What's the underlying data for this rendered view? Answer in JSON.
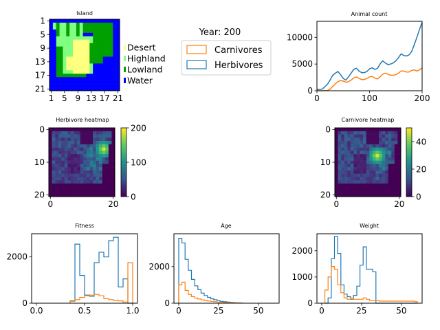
{
  "figure": {
    "year_label": "Year: 200",
    "colors": {
      "herbivore": "#1f77b4",
      "carnivore": "#ff7f0e"
    }
  },
  "legend": {
    "items": [
      {
        "label": "Carnivores",
        "color": "#ff7f0e"
      },
      {
        "label": "Herbivores",
        "color": "#1f77b4"
      }
    ]
  },
  "chart_data": [
    {
      "id": "island",
      "type": "heatmap",
      "title": "Island",
      "grid_size": [
        21,
        21
      ],
      "xticks": [
        "1",
        "5",
        "9",
        "13",
        "17",
        "21"
      ],
      "yticks": [
        "1",
        "5",
        "9",
        "13",
        "17",
        "21"
      ],
      "legend": [
        {
          "label": "Desert",
          "color": "#ffff80"
        },
        {
          "label": "Highland",
          "color": "#80ff80"
        },
        {
          "label": "Lowland",
          "color": "#00a000"
        },
        {
          "label": "Water",
          "color": "#0000ff"
        }
      ]
    },
    {
      "id": "animal-count",
      "type": "line",
      "title": "Animal count",
      "xlim": [
        0,
        200
      ],
      "ylim": [
        0,
        13000
      ],
      "xticks": [
        "0",
        "100",
        "200"
      ],
      "yticks": [
        "0",
        "5000",
        "10000"
      ],
      "series": [
        {
          "name": "Herbivores",
          "color": "#1f77b4",
          "x": [
            0,
            10,
            20,
            25,
            30,
            35,
            40,
            45,
            50,
            55,
            60,
            65,
            70,
            75,
            80,
            85,
            90,
            95,
            100,
            105,
            110,
            115,
            120,
            125,
            130,
            135,
            140,
            145,
            150,
            155,
            160,
            165,
            170,
            175,
            180,
            185,
            190,
            195,
            200
          ],
          "y": [
            200,
            300,
            1200,
            2000,
            2900,
            3300,
            3600,
            3000,
            2300,
            2000,
            2600,
            3300,
            4000,
            4200,
            3700,
            3400,
            3400,
            3600,
            4100,
            4300,
            4000,
            4200,
            5000,
            5600,
            5200,
            4900,
            5000,
            5200,
            5600,
            6200,
            6900,
            6600,
            6500,
            6700,
            7300,
            8600,
            10000,
            11500,
            12800
          ]
        },
        {
          "name": "Carnivores",
          "color": "#ff7f0e",
          "x": [
            0,
            10,
            20,
            25,
            30,
            35,
            40,
            45,
            50,
            55,
            60,
            65,
            70,
            75,
            80,
            85,
            90,
            95,
            100,
            105,
            110,
            115,
            120,
            125,
            130,
            135,
            140,
            145,
            150,
            155,
            160,
            165,
            170,
            175,
            180,
            185,
            190,
            195,
            200
          ],
          "y": [
            0,
            0,
            50,
            300,
            800,
            1300,
            1700,
            1900,
            1800,
            1600,
            1700,
            2000,
            2400,
            2600,
            2300,
            2100,
            2100,
            2300,
            2600,
            2700,
            2400,
            2200,
            2600,
            3100,
            3300,
            3100,
            2900,
            2900,
            3000,
            3300,
            3700,
            3700,
            3500,
            3500,
            3800,
            3900,
            3700,
            3900,
            4300
          ]
        }
      ]
    },
    {
      "id": "herbivore-heatmap",
      "type": "heatmap",
      "title": "Herbivore heatmap",
      "grid_size": [
        21,
        21
      ],
      "xticks": [
        "0",
        "20"
      ],
      "yticks": [
        "0",
        "10",
        "20"
      ],
      "colorbar": {
        "min": 0,
        "max": 200,
        "ticks": [
          "0",
          "100",
          "200"
        ]
      }
    },
    {
      "id": "carnivore-heatmap",
      "type": "heatmap",
      "title": "Carnivore heatmap",
      "grid_size": [
        21,
        21
      ],
      "xticks": [
        "0",
        "20"
      ],
      "yticks": [
        "0",
        "10",
        "20"
      ],
      "colorbar": {
        "min": 0,
        "max": 50,
        "ticks": [
          "0",
          "20",
          "40"
        ]
      }
    },
    {
      "id": "fitness",
      "type": "bar",
      "title": "Fitness",
      "xlim": [
        -0.05,
        1.05
      ],
      "ylim": [
        0,
        3000
      ],
      "xticks": [
        "0.0",
        "0.5",
        "1.0"
      ],
      "yticks": [
        "0",
        "2000"
      ],
      "bin_edges": [
        0.35,
        0.4,
        0.45,
        0.5,
        0.55,
        0.6,
        0.65,
        0.7,
        0.75,
        0.8,
        0.85,
        0.9,
        0.95,
        1.0
      ],
      "series": [
        {
          "name": "Herbivores",
          "color": "#1f77b4",
          "values": [
            100,
            2550,
            1200,
            350,
            300,
            1750,
            2200,
            2000,
            2700,
            2850,
            700,
            1050,
            0
          ]
        },
        {
          "name": "Carnivores",
          "color": "#ff7f0e",
          "values": [
            80,
            150,
            250,
            320,
            350,
            380,
            320,
            200,
            150,
            120,
            100,
            50,
            1750
          ]
        }
      ]
    },
    {
      "id": "age",
      "type": "bar",
      "title": "Age",
      "xlim": [
        -3,
        63
      ],
      "ylim": [
        0,
        3800
      ],
      "xticks": [
        "0",
        "25",
        "50"
      ],
      "yticks": [
        "0",
        "2000"
      ],
      "bin_edges": [
        0,
        2,
        4,
        6,
        8,
        10,
        12,
        14,
        16,
        18,
        20,
        22,
        24,
        26,
        28,
        30,
        32,
        34,
        36,
        38,
        40
      ],
      "series": [
        {
          "name": "Herbivores",
          "color": "#1f77b4",
          "values": [
            3550,
            3300,
            2400,
            1800,
            1300,
            950,
            750,
            550,
            420,
            320,
            240,
            190,
            140,
            100,
            80,
            60,
            40,
            30,
            20,
            10
          ]
        },
        {
          "name": "Carnivores",
          "color": "#ff7f0e",
          "values": [
            1000,
            1150,
            700,
            480,
            360,
            280,
            230,
            180,
            150,
            120,
            100,
            80,
            60,
            50,
            40,
            30,
            20,
            15,
            10,
            5
          ]
        }
      ]
    },
    {
      "id": "weight",
      "type": "bar",
      "title": "Weight",
      "xlim": [
        -3,
        63
      ],
      "ylim": [
        0,
        2650
      ],
      "xticks": [
        "0",
        "25",
        "50"
      ],
      "yticks": [
        "0",
        "1000",
        "2000"
      ],
      "bin_edges": [
        2,
        4,
        6,
        8,
        10,
        12,
        14,
        16,
        18,
        20,
        22,
        24,
        26,
        28,
        30,
        32,
        34,
        36,
        38,
        40,
        42,
        44,
        46,
        48,
        50,
        52,
        54,
        56,
        58,
        60
      ],
      "series": [
        {
          "name": "Herbivores",
          "color": "#1f77b4",
          "values": [
            0,
            200,
            1700,
            2550,
            1900,
            700,
            350,
            250,
            150,
            300,
            650,
            1450,
            2150,
            1300,
            1300,
            1200,
            0,
            0,
            0,
            0,
            0,
            0,
            0,
            0,
            0,
            0,
            0,
            0,
            0
          ]
        },
        {
          "name": "Carnivores",
          "color": "#ff7f0e",
          "values": [
            500,
            1000,
            1400,
            1300,
            700,
            400,
            200,
            150,
            200,
            150,
            150,
            150,
            200,
            150,
            100,
            100,
            100,
            80,
            80,
            80,
            80,
            80,
            80,
            80,
            80,
            80,
            80,
            80,
            60
          ]
        }
      ]
    }
  ]
}
